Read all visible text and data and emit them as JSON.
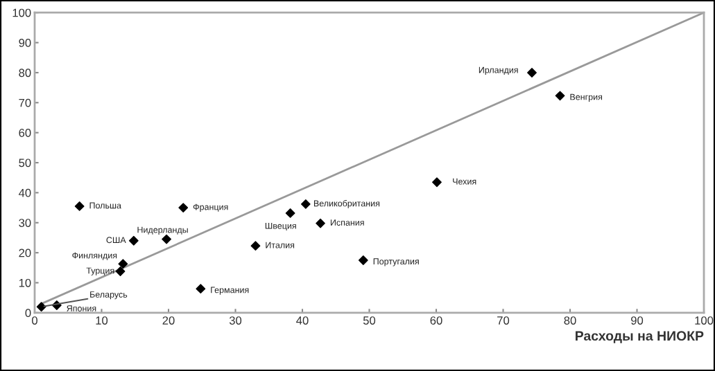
{
  "chart_data": {
    "type": "scatter",
    "xlabel": "Расходы на НИОКР",
    "xlim": [
      0,
      100
    ],
    "ylim": [
      0,
      100
    ],
    "xticks": [
      0,
      10,
      20,
      30,
      40,
      50,
      60,
      70,
      80,
      90,
      100
    ],
    "yticks": [
      0,
      10,
      20,
      30,
      40,
      50,
      60,
      70,
      80,
      90,
      100
    ],
    "grid": false,
    "legend": false,
    "marker": "diamond",
    "series": [
      {
        "color": "#000000",
        "x": [
          6.7,
          22.2,
          14.8,
          19.7,
          13.2,
          12.8,
          1,
          3.3,
          24.8,
          33,
          38.2,
          40.5,
          42.7,
          49.1,
          60.1,
          74.3,
          78.5
        ],
        "values": [
          35.5,
          35,
          24,
          24.5,
          16.3,
          13.8,
          2,
          2.5,
          8,
          22.3,
          33.2,
          36.2,
          29.8,
          17.5,
          43.5,
          80,
          72.3
        ]
      },
      {
        "type": "line",
        "color": "#999999",
        "x": [
          1,
          100
        ],
        "values": [
          3,
          100
        ],
        "marker": "none",
        "line_style": "solid"
      }
    ],
    "annotations": [
      {
        "text": "Польша",
        "x": 6.7,
        "y": 35.5
      },
      {
        "text": "Франция",
        "x": 22.2,
        "y": 35
      },
      {
        "text": "США",
        "x": 14.8,
        "y": 24
      },
      {
        "text": "Нидерланды",
        "x": 19.7,
        "y": 24.5
      },
      {
        "text": "Финляндия",
        "x": 13.2,
        "y": 16.3
      },
      {
        "text": "Турция",
        "x": 12.8,
        "y": 13.8
      },
      {
        "text": "Беларусь",
        "x": 1,
        "y": 2
      },
      {
        "text": "Япония",
        "x": 3.3,
        "y": 2.5
      },
      {
        "text": "Германия",
        "x": 24.8,
        "y": 8
      },
      {
        "text": "Италия",
        "x": 33,
        "y": 22.3
      },
      {
        "text": "Швеция",
        "x": 38.2,
        "y": 33.2
      },
      {
        "text": "Великобритания",
        "x": 40.5,
        "y": 36.2
      },
      {
        "text": "Испания",
        "x": 42.7,
        "y": 29.8
      },
      {
        "text": "Португалия",
        "x": 49.1,
        "y": 17.5
      },
      {
        "text": "Чехия",
        "x": 60.1,
        "y": 43.5
      },
      {
        "text": "Ирландия",
        "x": 74.3,
        "y": 80
      },
      {
        "text": "Венгрия",
        "x": 78.5,
        "y": 72.3
      }
    ]
  }
}
